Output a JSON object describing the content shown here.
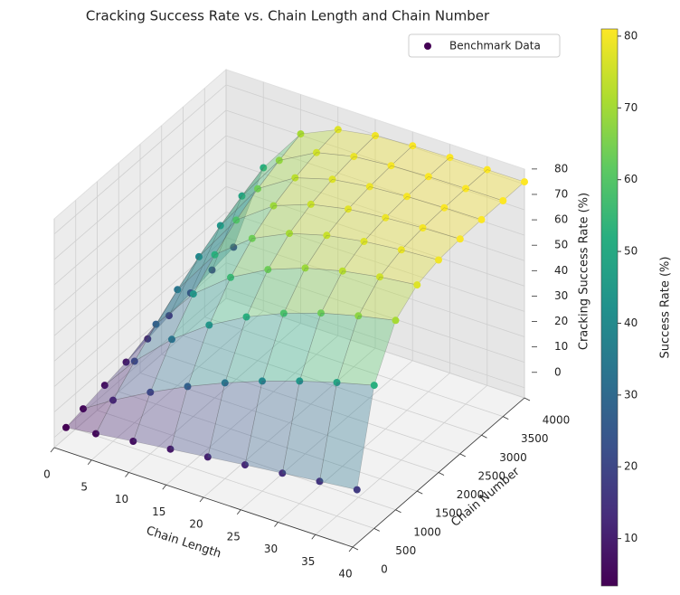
{
  "chart_data": {
    "type": "scatter3d",
    "title": "Cracking Success Rate vs. Chain Length and Chain Number",
    "xlabel": "Chain Length",
    "ylabel": "Chain Number",
    "zlabel": "Cracking Success Rate (%)",
    "colorbar_label": "Success Rate (%)",
    "colormap": "viridis",
    "surface": true,
    "legend": "upper right",
    "series": [
      {
        "name": "Benchmark Data",
        "color": "#440154"
      }
    ],
    "x": [
      1,
      5,
      10,
      15,
      20,
      25,
      30,
      35,
      40
    ],
    "y": [
      100,
      500,
      1000,
      1500,
      2000,
      2500,
      3000,
      3500,
      4000
    ],
    "z": [
      [
        3.4,
        4.9,
        6.8,
        8.6,
        10.4,
        12.2,
        13.8,
        15.5,
        17.1
      ],
      [
        4.9,
        12.2,
        20.2,
        27.4,
        33.7,
        39.3,
        44.2,
        48.5,
        52.3
      ],
      [
        6.8,
        20.2,
        33.7,
        44.2,
        52.3,
        58.6,
        63.6,
        67.4,
        70.5
      ],
      [
        8.6,
        27.4,
        44.2,
        55.6,
        63.6,
        69.1,
        72.8,
        75.4,
        77.1
      ],
      [
        10.4,
        33.7,
        52.3,
        63.6,
        70.5,
        74.6,
        77.1,
        78.7,
        79.6
      ],
      [
        12.2,
        39.3,
        58.6,
        69.1,
        74.6,
        77.6,
        79.1,
        80.0,
        80.5
      ],
      [
        13.8,
        44.2,
        63.6,
        72.8,
        77.1,
        79.1,
        80.1,
        80.6,
        80.8
      ],
      [
        15.5,
        48.5,
        67.4,
        75.4,
        78.7,
        80.0,
        80.6,
        80.8,
        80.9
      ],
      [
        17.1,
        52.3,
        70.5,
        77.1,
        79.6,
        80.5,
        80.8,
        80.9,
        81.0
      ]
    ],
    "xlim": [
      0,
      40
    ],
    "ylim": [
      0,
      4000
    ],
    "zlim": [
      -4,
      86
    ],
    "xticks": [
      0,
      5,
      10,
      15,
      20,
      25,
      30,
      35,
      40
    ],
    "yticks": [
      0,
      500,
      1000,
      1500,
      2000,
      2500,
      3000,
      3500,
      4000
    ],
    "zticks": [
      0,
      10,
      20,
      30,
      40,
      50,
      60,
      70,
      80
    ],
    "colorbar_ticks": [
      10,
      20,
      30,
      40,
      50,
      60,
      70,
      80
    ]
  }
}
